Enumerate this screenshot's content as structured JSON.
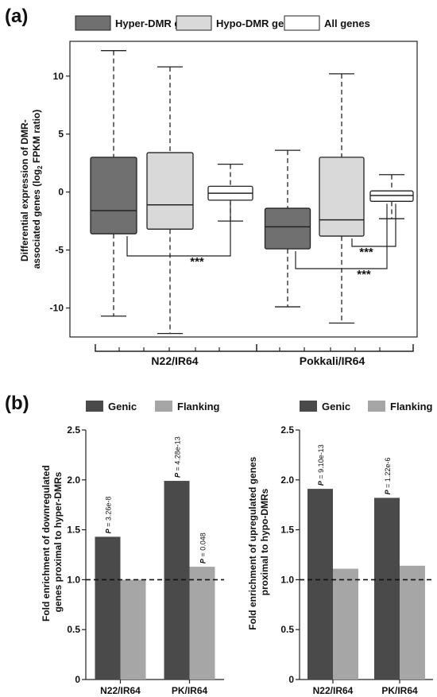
{
  "panel_a": {
    "label": "(a)"
  },
  "panel_b": {
    "label": "(b)"
  },
  "chart_data": [
    {
      "type": "box",
      "panel": "(a)",
      "ylabel_line1": "Differential expression of DMR-",
      "ylabel_line2_pre": "associated genes (log",
      "ylabel_line2_sub": "2",
      "ylabel_line2_post": " FPKM ratio)",
      "ylim": [
        -12.5,
        13
      ],
      "yticks": [
        10,
        5,
        0,
        -5,
        -10
      ],
      "ytick_labels": [
        "10",
        "5",
        "0",
        "-5",
        "-10"
      ],
      "groups": [
        "N22/IR64",
        "Pokkali/IR64"
      ],
      "series": [
        {
          "name": "Hyper-DMR genes",
          "color": "#707070"
        },
        {
          "name": "Hypo-DMR genes",
          "color": "#d9d9d9"
        },
        {
          "name": "All genes",
          "color": "#ffffff"
        }
      ],
      "boxes": [
        {
          "group": "N22/IR64",
          "series": "Hyper-DMR genes",
          "whisker_low": -10.7,
          "q1": -3.6,
          "median": -1.6,
          "q3": 3.0,
          "whisker_high": 12.2
        },
        {
          "group": "N22/IR64",
          "series": "Hypo-DMR genes",
          "whisker_low": -12.2,
          "q1": -3.2,
          "median": -1.1,
          "q3": 3.4,
          "whisker_high": 10.8
        },
        {
          "group": "N22/IR64",
          "series": "All genes",
          "whisker_low": -2.5,
          "q1": -0.7,
          "median": -0.1,
          "q3": 0.5,
          "whisker_high": 2.4
        },
        {
          "group": "Pokkali/IR64",
          "series": "Hyper-DMR genes",
          "whisker_low": -9.9,
          "q1": -4.9,
          "median": -3.0,
          "q3": -1.4,
          "whisker_high": 3.6
        },
        {
          "group": "Pokkali/IR64",
          "series": "Hypo-DMR genes",
          "whisker_low": -11.3,
          "q1": -3.8,
          "median": -2.4,
          "q3": 3.0,
          "whisker_high": 10.2
        },
        {
          "group": "Pokkali/IR64",
          "series": "All genes",
          "whisker_low": -2.3,
          "q1": -0.8,
          "median": -0.3,
          "q3": 0.1,
          "whisker_high": 1.5
        }
      ],
      "annotations": [
        "***",
        "***",
        "***"
      ]
    },
    {
      "type": "bar",
      "panel": "(b) left",
      "ylabel_line1": "Fold enrichment of downregulated",
      "ylabel_line2": "genes proximal to hyper-DMRs",
      "categories": [
        "N22/IR64",
        "PK/IR64"
      ],
      "ylim": [
        0,
        2.5
      ],
      "yticks": [
        "0",
        "0.5",
        "1.0",
        "1.5",
        "2.0",
        "2.5"
      ],
      "reference_line": 1.0,
      "series": [
        {
          "name": "Genic",
          "color": "#4a4a4a",
          "values": [
            1.43,
            1.99
          ]
        },
        {
          "name": "Flanking",
          "color": "#a6a6a6",
          "values": [
            1.0,
            1.13
          ]
        }
      ],
      "pvalue_labels": [
        {
          "category": "N22/IR64",
          "series": "Genic",
          "p": "P",
          "value": " = 3.26e-8"
        },
        {
          "category": "PK/IR64",
          "series": "Genic",
          "p": "P",
          "value": " = 4.28e-13"
        },
        {
          "category": "PK/IR64",
          "series": "Flanking",
          "p": "P",
          "value": " = 0.048"
        }
      ]
    },
    {
      "type": "bar",
      "panel": "(b) right",
      "ylabel_line1": "Fold enrichment of upregulated genes",
      "ylabel_line2": "proximal to hypo-DMRs",
      "categories": [
        "N22/IR64",
        "PK/IR64"
      ],
      "ylim": [
        0,
        2.5
      ],
      "yticks": [
        "0",
        "0.5",
        "1.0",
        "1.5",
        "2.0",
        "2.5"
      ],
      "reference_line": 1.0,
      "series": [
        {
          "name": "Genic",
          "color": "#4a4a4a",
          "values": [
            1.91,
            1.82
          ]
        },
        {
          "name": "Flanking",
          "color": "#a6a6a6",
          "values": [
            1.11,
            1.14
          ]
        }
      ],
      "pvalue_labels": [
        {
          "category": "N22/IR64",
          "series": "Genic",
          "p": "P",
          "value": " = 9.10e-13"
        },
        {
          "category": "PK/IR64",
          "series": "Genic",
          "p": "P",
          "value": " = 1.22e-6"
        }
      ]
    }
  ]
}
